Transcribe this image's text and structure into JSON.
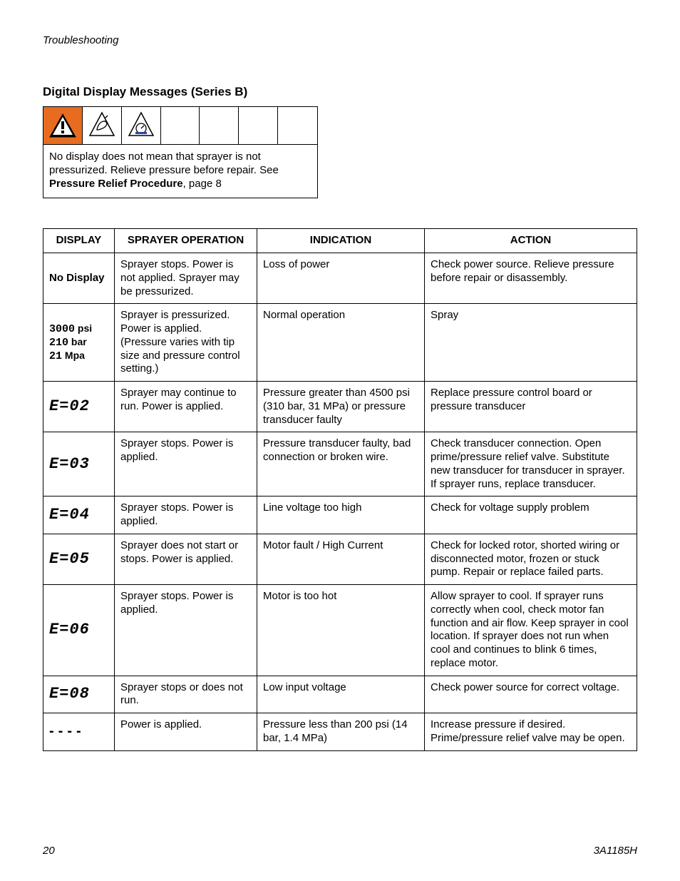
{
  "header": {
    "running": "Troubleshooting"
  },
  "section": {
    "title": "Digital Display Messages (Series B)"
  },
  "warning": {
    "text_line1": "No display does not mean that sprayer is not pressurized. Relieve pressure before repair. See ",
    "bold_part": "Pressure Relief Procedure",
    "text_tail": ", page 8",
    "icon_bg": "#e86c1f",
    "icon_fg": "#000000"
  },
  "table": {
    "headers": [
      "DISPLAY",
      "SPRAYER OPERATION",
      "INDICATION",
      "ACTION"
    ],
    "rows": [
      {
        "display_kind": "bold_text",
        "display_text": "No Display",
        "operation": "Sprayer stops. Power is not applied. Sprayer may be pressurized.",
        "indication": "Loss of power",
        "action": "Check power source. Relieve pressure before repair or disassembly."
      },
      {
        "display_kind": "psi_block",
        "display_lines": [
          {
            "val": "3000",
            "unit": "psi"
          },
          {
            "val": "210",
            "unit": "bar"
          },
          {
            "val": "21",
            "unit": "Mpa"
          }
        ],
        "operation": "Sprayer is pressurized. Power is applied. (Pressure varies with tip size and pressure control setting.)",
        "indication": "Normal operation",
        "action": "Spray"
      },
      {
        "display_kind": "seg",
        "display_text": "E=02",
        "operation": "Sprayer may continue to run. Power is applied.",
        "indication": "Pressure greater than 4500 psi (310 bar, 31 MPa) or pressure transducer faulty",
        "action": "Replace pressure control board or pressure transducer"
      },
      {
        "display_kind": "seg",
        "display_text": "E=03",
        "operation": "Sprayer stops. Power is applied.",
        "indication": "Pressure transducer faulty, bad connection or broken wire.",
        "action": "Check transducer connection. Open prime/pressure relief valve. Substitute new transducer for transducer in sprayer. If sprayer runs, replace transducer."
      },
      {
        "display_kind": "seg",
        "display_text": "E=04",
        "operation": "Sprayer stops. Power is applied.",
        "indication": "Line voltage too high",
        "action": "Check for voltage supply problem"
      },
      {
        "display_kind": "seg",
        "display_text": "E=05",
        "operation": "Sprayer does not start or stops. Power is applied.",
        "indication": "Motor fault / High Current",
        "action": "Check for locked rotor, shorted wiring or disconnected motor, frozen or stuck pump. Repair or replace failed parts."
      },
      {
        "display_kind": "seg",
        "display_text": "E=06",
        "operation": "Sprayer stops. Power is applied.",
        "indication": "Motor is too hot",
        "action": "Allow sprayer to cool. If sprayer runs correctly when cool, check motor fan function and air flow. Keep sprayer in cool location. If sprayer does not run when cool and continues to blink 6 times, replace motor."
      },
      {
        "display_kind": "seg",
        "display_text": "E=08",
        "operation": "Sprayer stops or does not run.",
        "indication": "Low input voltage",
        "action": "Check power source for correct voltage."
      },
      {
        "display_kind": "dashes",
        "display_text": "----",
        "operation": "Power is applied.",
        "indication": "Pressure less than 200 psi (14 bar, 1.4 MPa)",
        "action": "Increase pressure if desired. Prime/pressure relief valve may be open."
      }
    ]
  },
  "footer": {
    "page": "20",
    "doc": "3A1185H"
  }
}
